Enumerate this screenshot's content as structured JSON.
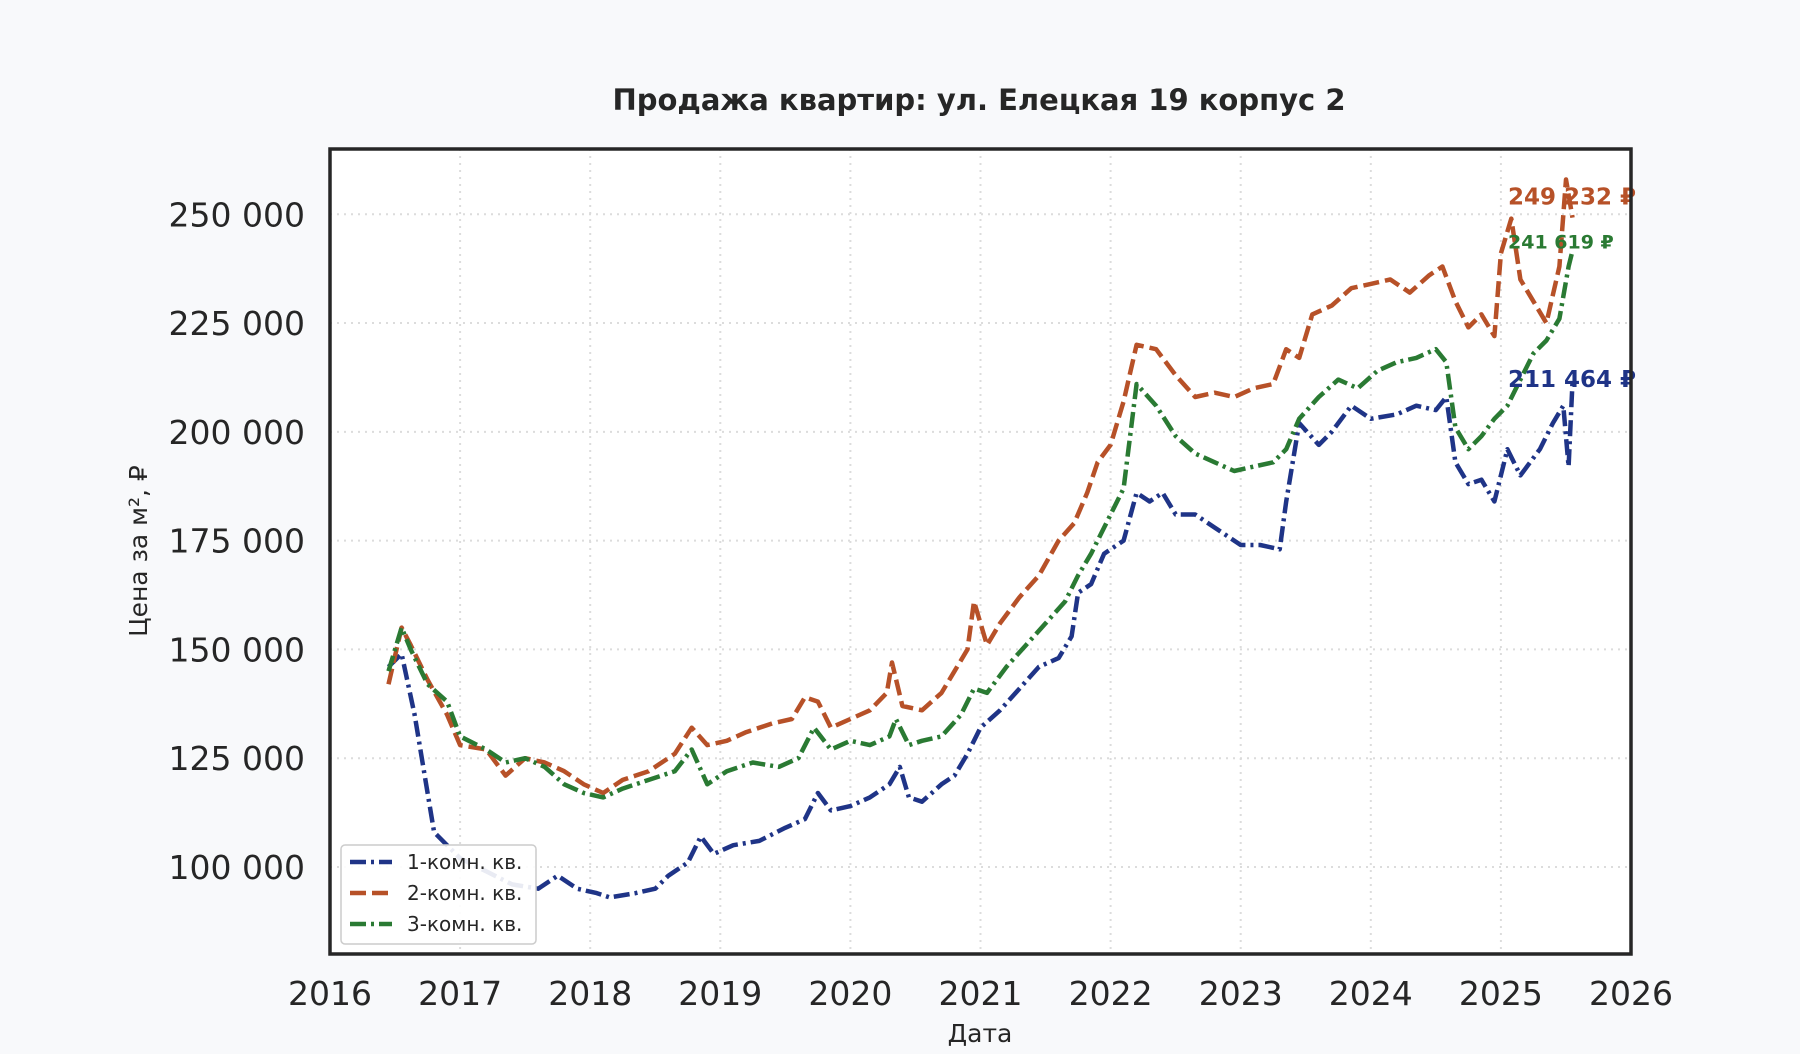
{
  "chart_data": {
    "type": "line",
    "title": "Продажа квартир: ул. Елецкая 19 корпус 2",
    "xlabel": "Дата",
    "ylabel": "Цена за м², ₽",
    "xlim": [
      2016,
      2026
    ],
    "ylim": [
      80000,
      265000
    ],
    "x_ticks": [
      2016,
      2017,
      2018,
      2019,
      2020,
      2021,
      2022,
      2023,
      2024,
      2025,
      2026
    ],
    "x_tick_labels": [
      "2016",
      "2017",
      "2018",
      "2019",
      "2020",
      "2021",
      "2022",
      "2023",
      "2024",
      "2025",
      "2026"
    ],
    "y_ticks": [
      100000,
      125000,
      150000,
      175000,
      200000,
      225000,
      250000
    ],
    "y_tick_labels": [
      "100 000",
      "125 000",
      "150 000",
      "175 000",
      "200 000",
      "225 000",
      "250 000"
    ],
    "grid": true,
    "legend_position": "bottom-left",
    "series": [
      {
        "name": "1-комн. кв.",
        "color": "#1f3487",
        "dash": "dashdot",
        "end_label": "211 464 ₽",
        "points": [
          [
            2016.45,
            146000
          ],
          [
            2016.55,
            149000
          ],
          [
            2016.65,
            135000
          ],
          [
            2016.8,
            108000
          ],
          [
            2017.0,
            102000
          ],
          [
            2017.2,
            99000
          ],
          [
            2017.4,
            96000
          ],
          [
            2017.6,
            95000
          ],
          [
            2017.75,
            98000
          ],
          [
            2017.9,
            95000
          ],
          [
            2018.05,
            94000
          ],
          [
            2018.15,
            93000
          ],
          [
            2018.35,
            94000
          ],
          [
            2018.5,
            95000
          ],
          [
            2018.6,
            98000
          ],
          [
            2018.75,
            101000
          ],
          [
            2018.85,
            107000
          ],
          [
            2018.95,
            103000
          ],
          [
            2019.1,
            105000
          ],
          [
            2019.3,
            106000
          ],
          [
            2019.5,
            109000
          ],
          [
            2019.65,
            111000
          ],
          [
            2019.75,
            117000
          ],
          [
            2019.85,
            113000
          ],
          [
            2020.0,
            114000
          ],
          [
            2020.15,
            116000
          ],
          [
            2020.3,
            119000
          ],
          [
            2020.38,
            123000
          ],
          [
            2020.45,
            116000
          ],
          [
            2020.55,
            115000
          ],
          [
            2020.7,
            119000
          ],
          [
            2020.8,
            121000
          ],
          [
            2020.9,
            126000
          ],
          [
            2021.0,
            132000
          ],
          [
            2021.15,
            136000
          ],
          [
            2021.3,
            141000
          ],
          [
            2021.45,
            146000
          ],
          [
            2021.6,
            148000
          ],
          [
            2021.7,
            153000
          ],
          [
            2021.75,
            163000
          ],
          [
            2021.85,
            165000
          ],
          [
            2021.95,
            172000
          ],
          [
            2022.1,
            175000
          ],
          [
            2022.2,
            186000
          ],
          [
            2022.3,
            184000
          ],
          [
            2022.4,
            186000
          ],
          [
            2022.5,
            181000
          ],
          [
            2022.65,
            181000
          ],
          [
            2022.8,
            178000
          ],
          [
            2022.9,
            176000
          ],
          [
            2023.0,
            174000
          ],
          [
            2023.15,
            174000
          ],
          [
            2023.3,
            173000
          ],
          [
            2023.35,
            184000
          ],
          [
            2023.45,
            202000
          ],
          [
            2023.6,
            197000
          ],
          [
            2023.7,
            200000
          ],
          [
            2023.85,
            206000
          ],
          [
            2024.0,
            203000
          ],
          [
            2024.2,
            204000
          ],
          [
            2024.35,
            206000
          ],
          [
            2024.5,
            205000
          ],
          [
            2024.58,
            208000
          ],
          [
            2024.65,
            193000
          ],
          [
            2024.75,
            188000
          ],
          [
            2024.85,
            189000
          ],
          [
            2024.95,
            184000
          ],
          [
            2025.05,
            196000
          ],
          [
            2025.15,
            190000
          ],
          [
            2025.3,
            196000
          ],
          [
            2025.4,
            202000
          ],
          [
            2025.48,
            206000
          ],
          [
            2025.52,
            192000
          ],
          [
            2025.55,
            211464
          ]
        ]
      },
      {
        "name": "2-комн. кв.",
        "color": "#b75128",
        "dash": "dash",
        "end_label": "249 232 ₽",
        "points": [
          [
            2016.45,
            142000
          ],
          [
            2016.55,
            155000
          ],
          [
            2016.62,
            151000
          ],
          [
            2016.75,
            143000
          ],
          [
            2016.9,
            135000
          ],
          [
            2017.0,
            128000
          ],
          [
            2017.2,
            127000
          ],
          [
            2017.35,
            121000
          ],
          [
            2017.5,
            125000
          ],
          [
            2017.65,
            124000
          ],
          [
            2017.8,
            122000
          ],
          [
            2017.95,
            119000
          ],
          [
            2018.1,
            117000
          ],
          [
            2018.25,
            120000
          ],
          [
            2018.45,
            122000
          ],
          [
            2018.65,
            126000
          ],
          [
            2018.78,
            132000
          ],
          [
            2018.9,
            128000
          ],
          [
            2019.05,
            129000
          ],
          [
            2019.2,
            131000
          ],
          [
            2019.4,
            133000
          ],
          [
            2019.55,
            134000
          ],
          [
            2019.65,
            139000
          ],
          [
            2019.75,
            138000
          ],
          [
            2019.85,
            132000
          ],
          [
            2020.0,
            134000
          ],
          [
            2020.15,
            136000
          ],
          [
            2020.28,
            140000
          ],
          [
            2020.32,
            147000
          ],
          [
            2020.4,
            137000
          ],
          [
            2020.55,
            136000
          ],
          [
            2020.7,
            140000
          ],
          [
            2020.8,
            145000
          ],
          [
            2020.9,
            150000
          ],
          [
            2020.95,
            161000
          ],
          [
            2021.05,
            151000
          ],
          [
            2021.15,
            156000
          ],
          [
            2021.3,
            162000
          ],
          [
            2021.45,
            167000
          ],
          [
            2021.6,
            175000
          ],
          [
            2021.72,
            179000
          ],
          [
            2021.82,
            186000
          ],
          [
            2021.9,
            193000
          ],
          [
            2022.0,
            197000
          ],
          [
            2022.1,
            207000
          ],
          [
            2022.2,
            220000
          ],
          [
            2022.35,
            219000
          ],
          [
            2022.5,
            213000
          ],
          [
            2022.65,
            208000
          ],
          [
            2022.8,
            209000
          ],
          [
            2022.95,
            208000
          ],
          [
            2023.1,
            210000
          ],
          [
            2023.25,
            211000
          ],
          [
            2023.35,
            219000
          ],
          [
            2023.45,
            217000
          ],
          [
            2023.55,
            227000
          ],
          [
            2023.7,
            229000
          ],
          [
            2023.85,
            233000
          ],
          [
            2024.0,
            234000
          ],
          [
            2024.15,
            235000
          ],
          [
            2024.3,
            232000
          ],
          [
            2024.45,
            236000
          ],
          [
            2024.55,
            238000
          ],
          [
            2024.65,
            230000
          ],
          [
            2024.75,
            224000
          ],
          [
            2024.85,
            227000
          ],
          [
            2024.95,
            222000
          ],
          [
            2025.0,
            241000
          ],
          [
            2025.08,
            249000
          ],
          [
            2025.15,
            235000
          ],
          [
            2025.25,
            230000
          ],
          [
            2025.35,
            225000
          ],
          [
            2025.45,
            238000
          ],
          [
            2025.5,
            258000
          ],
          [
            2025.55,
            249232
          ]
        ]
      },
      {
        "name": "3-комн. кв.",
        "color": "#2a7a33",
        "dash": "dashdot",
        "end_label": "241 619 ₽",
        "points": [
          [
            2016.45,
            145000
          ],
          [
            2016.55,
            155000
          ],
          [
            2016.62,
            150000
          ],
          [
            2016.75,
            142000
          ],
          [
            2016.9,
            138000
          ],
          [
            2017.0,
            130000
          ],
          [
            2017.2,
            127000
          ],
          [
            2017.35,
            124000
          ],
          [
            2017.5,
            125000
          ],
          [
            2017.65,
            123000
          ],
          [
            2017.8,
            119000
          ],
          [
            2017.95,
            117000
          ],
          [
            2018.1,
            116000
          ],
          [
            2018.25,
            118000
          ],
          [
            2018.45,
            120000
          ],
          [
            2018.65,
            122000
          ],
          [
            2018.78,
            127000
          ],
          [
            2018.9,
            119000
          ],
          [
            2019.05,
            122000
          ],
          [
            2019.25,
            124000
          ],
          [
            2019.45,
            123000
          ],
          [
            2019.6,
            125000
          ],
          [
            2019.72,
            132000
          ],
          [
            2019.85,
            127000
          ],
          [
            2020.0,
            129000
          ],
          [
            2020.15,
            128000
          ],
          [
            2020.3,
            130000
          ],
          [
            2020.35,
            134000
          ],
          [
            2020.45,
            128000
          ],
          [
            2020.55,
            129000
          ],
          [
            2020.7,
            130000
          ],
          [
            2020.85,
            135000
          ],
          [
            2020.95,
            141000
          ],
          [
            2021.05,
            140000
          ],
          [
            2021.2,
            146000
          ],
          [
            2021.35,
            151000
          ],
          [
            2021.5,
            156000
          ],
          [
            2021.65,
            161000
          ],
          [
            2021.75,
            167000
          ],
          [
            2021.85,
            172000
          ],
          [
            2022.0,
            181000
          ],
          [
            2022.1,
            187000
          ],
          [
            2022.2,
            211000
          ],
          [
            2022.35,
            206000
          ],
          [
            2022.5,
            199000
          ],
          [
            2022.65,
            195000
          ],
          [
            2022.8,
            193000
          ],
          [
            2022.95,
            191000
          ],
          [
            2023.1,
            192000
          ],
          [
            2023.25,
            193000
          ],
          [
            2023.35,
            196000
          ],
          [
            2023.45,
            203000
          ],
          [
            2023.6,
            208000
          ],
          [
            2023.75,
            212000
          ],
          [
            2023.9,
            210000
          ],
          [
            2024.05,
            214000
          ],
          [
            2024.2,
            216000
          ],
          [
            2024.35,
            217000
          ],
          [
            2024.5,
            219000
          ],
          [
            2024.58,
            216000
          ],
          [
            2024.65,
            201000
          ],
          [
            2024.75,
            196000
          ],
          [
            2024.85,
            199000
          ],
          [
            2024.95,
            203000
          ],
          [
            2025.05,
            206000
          ],
          [
            2025.15,
            212000
          ],
          [
            2025.25,
            218000
          ],
          [
            2025.35,
            221000
          ],
          [
            2025.45,
            226000
          ],
          [
            2025.52,
            238000
          ],
          [
            2025.55,
            241619
          ]
        ]
      }
    ]
  }
}
